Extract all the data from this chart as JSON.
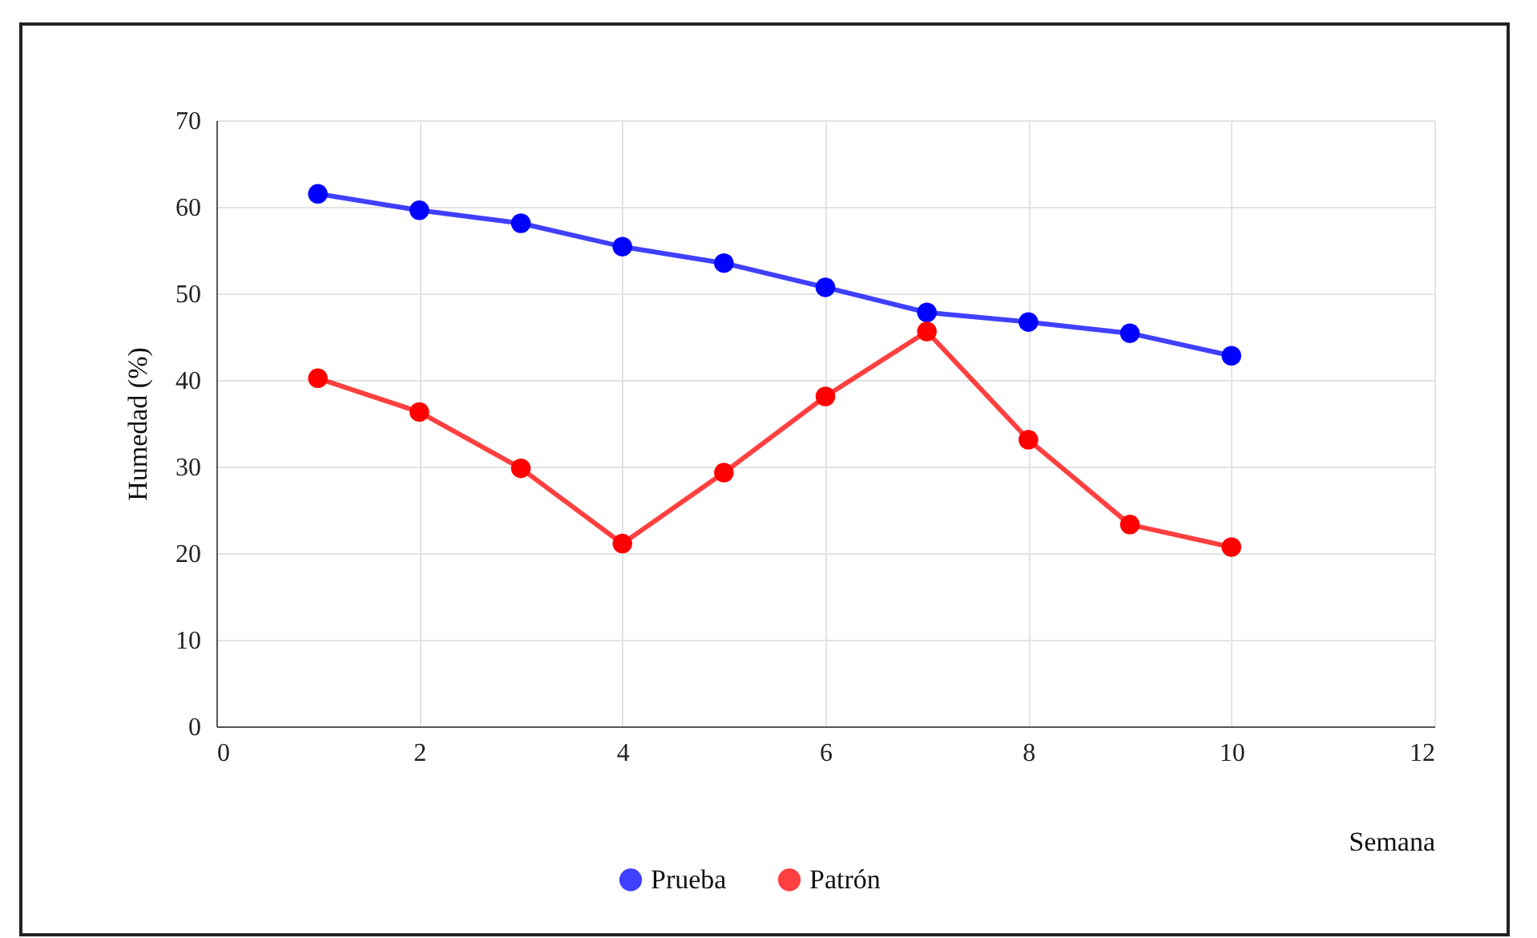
{
  "chart_data": {
    "type": "line",
    "xlabel": "Semana",
    "ylabel": "Humedad (%)",
    "x": [
      1,
      2,
      3,
      4,
      5,
      6,
      7,
      8,
      9,
      10
    ],
    "series": [
      {
        "name": "Prueba",
        "color": "#0000ff",
        "values": [
          61.5,
          59.6,
          58.1,
          55.4,
          53.5,
          50.7,
          47.8,
          46.7,
          45.4,
          42.8
        ]
      },
      {
        "name": "Patrón",
        "color": "#ff0000",
        "values": [
          40.2,
          36.3,
          29.8,
          21.1,
          29.3,
          38.1,
          45.6,
          33.1,
          23.3,
          20.7
        ]
      }
    ],
    "xlim": [
      0,
      12
    ],
    "xticks": [
      0,
      2,
      4,
      6,
      8,
      10,
      12
    ],
    "ylim": [
      0,
      70
    ],
    "yticks": [
      0,
      10,
      20,
      30,
      40,
      50,
      60,
      70
    ],
    "grid": true,
    "legend": "bottom",
    "marker": "circle",
    "line_style": "solid"
  }
}
